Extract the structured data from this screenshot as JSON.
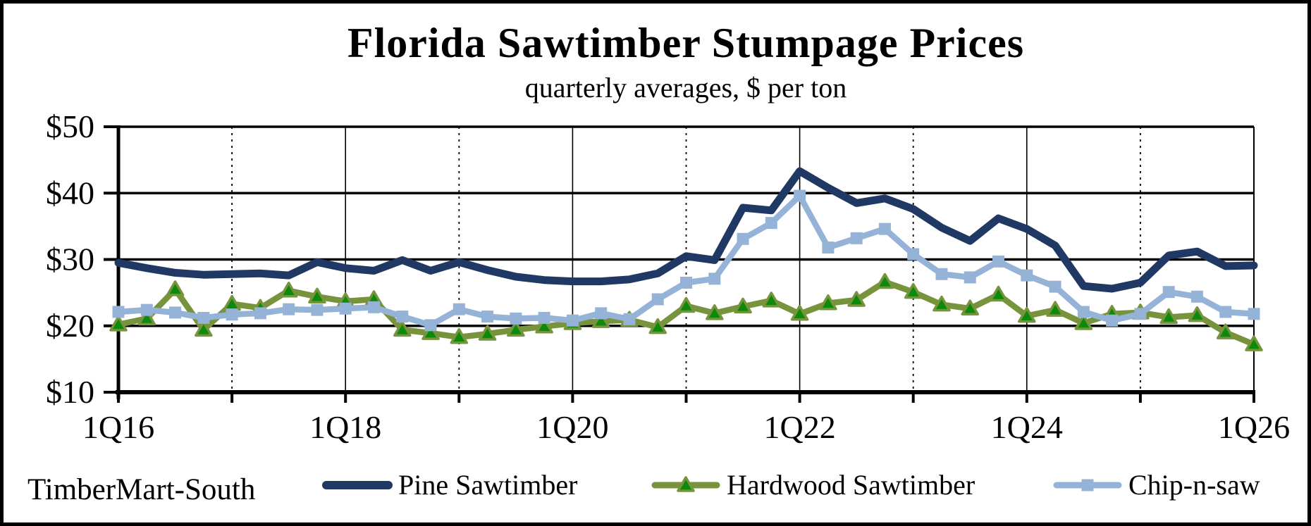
{
  "figure": {
    "title": "Florida Sawtimber Stumpage Prices",
    "subtitle": "quarterly averages, $ per ton",
    "source_label": "TimberMart-South"
  },
  "chart_data": {
    "type": "line",
    "title": "Florida Sawtimber Stumpage Prices",
    "subtitle": "quarterly averages, $ per ton",
    "xlabel": "",
    "ylabel": "$ per ton",
    "ylim": [
      10,
      50
    ],
    "grid": {
      "horizontal_values": [
        20,
        30,
        40
      ],
      "vertical_solid_quarter_offsets": [
        8,
        16,
        24,
        32
      ],
      "vertical_dotted_quarter_offsets": [
        4,
        12,
        20,
        28,
        36
      ],
      "right_border_quarter_offset": 40
    },
    "legend_position": "bottom",
    "y_ticks": [
      "$10",
      "$20",
      "$30",
      "$40",
      "$50"
    ],
    "y_tick_values": [
      10,
      20,
      30,
      40,
      50
    ],
    "x_axis_labels": [
      "1Q16",
      "1Q18",
      "1Q20",
      "1Q22",
      "1Q24",
      "1Q26"
    ],
    "x_label_quarter_offsets": [
      0,
      8,
      16,
      24,
      32,
      40
    ],
    "x": [
      "1Q16",
      "2Q16",
      "3Q16",
      "4Q16",
      "1Q17",
      "2Q17",
      "3Q17",
      "4Q17",
      "1Q18",
      "2Q18",
      "3Q18",
      "4Q18",
      "1Q19",
      "2Q19",
      "3Q19",
      "4Q19",
      "1Q20",
      "2Q20",
      "3Q20",
      "4Q20",
      "1Q21",
      "2Q21",
      "3Q21",
      "4Q21",
      "1Q22",
      "2Q22",
      "3Q22",
      "4Q22",
      "1Q23",
      "2Q23",
      "3Q23",
      "4Q23",
      "1Q24",
      "2Q24",
      "3Q24",
      "4Q24",
      "1Q25",
      "2Q25",
      "3Q25",
      "4Q25",
      "1Q26"
    ],
    "series": [
      {
        "name": "Pine Sawtimber",
        "color": "#1F3864",
        "marker": "none",
        "line_width": 11,
        "values": [
          29.5,
          28.7,
          28.0,
          27.7,
          27.8,
          27.9,
          27.6,
          29.6,
          28.7,
          28.3,
          29.9,
          28.3,
          29.6,
          28.4,
          27.4,
          26.9,
          26.7,
          26.7,
          27.0,
          27.9,
          30.5,
          29.9,
          37.8,
          37.4,
          43.3,
          40.8,
          38.5,
          39.2,
          37.6,
          34.8,
          32.8,
          36.2,
          34.6,
          32.1,
          26.0,
          25.6,
          26.5,
          30.6,
          31.2,
          29.0,
          29.1
        ]
      },
      {
        "name": "Hardwood Sawtimber",
        "color": "#77933C",
        "marker": "triangle",
        "marker_color": "#0B8A0B",
        "line_width": 8.5,
        "values": [
          20.2,
          21.1,
          25.5,
          19.4,
          23.3,
          22.7,
          25.3,
          24.4,
          23.7,
          24.0,
          19.4,
          18.9,
          18.3,
          18.8,
          19.4,
          19.9,
          20.4,
          20.7,
          20.9,
          19.8,
          23.0,
          21.9,
          22.9,
          23.8,
          21.8,
          23.4,
          23.9,
          26.6,
          25.1,
          23.2,
          22.6,
          24.7,
          21.5,
          22.4,
          20.4,
          21.8,
          22.0,
          21.3,
          21.6,
          19.0,
          17.2
        ]
      },
      {
        "name": "Chip-n-saw",
        "color": "#95B3D7",
        "marker": "square",
        "marker_color": "#95B3D7",
        "line_width": 8.5,
        "values": [
          22.1,
          22.4,
          22.0,
          21.2,
          21.7,
          21.9,
          22.5,
          22.4,
          22.6,
          22.8,
          21.4,
          20.1,
          22.5,
          21.4,
          21.1,
          21.2,
          20.8,
          21.9,
          21.0,
          24.0,
          26.5,
          27.1,
          33.1,
          35.5,
          39.6,
          31.8,
          33.2,
          34.6,
          30.8,
          27.8,
          27.3,
          29.7,
          27.6,
          25.9,
          22.1,
          20.8,
          21.8,
          25.1,
          24.4,
          22.1,
          21.8
        ]
      }
    ]
  }
}
